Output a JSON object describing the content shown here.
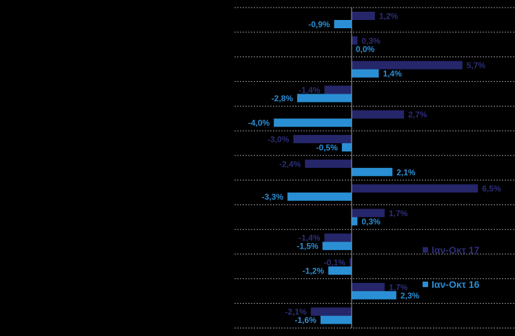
{
  "chart_data": {
    "type": "bar",
    "orientation": "horizontal",
    "title": "",
    "xlabel": "",
    "ylabel": "",
    "categories": [
      "",
      "",
      "",
      "",
      "",
      "",
      "",
      "",
      "",
      "",
      "",
      "",
      ""
    ],
    "xlim": [
      -9.0,
      8.0
    ],
    "grid": "horizontal-dashed",
    "legend_position": "right",
    "series": [
      {
        "name": "Ιαν-Οκτ 17",
        "color": "#26266b",
        "label_color": "#2d2d78",
        "values": [
          1.2,
          0.3,
          5.7,
          -1.4,
          2.7,
          -3.0,
          -2.4,
          6.5,
          1.7,
          -1.4,
          -0.1,
          1.7,
          -2.1
        ],
        "labels": [
          "1,2%",
          "0,3%",
          "5,7%",
          "-1,4%",
          "2,7%",
          "-3,0%",
          "-2,4%",
          "6,5%",
          "1,7%",
          "-1,4%",
          "-0,1%",
          "1,7%",
          "-2,1%"
        ]
      },
      {
        "name": "Ιαν-Οκτ 16",
        "color": "#2a8fd4",
        "label_color": "#2a8fd4",
        "values": [
          -0.9,
          0.0,
          1.4,
          -2.8,
          -4.0,
          -0.5,
          2.1,
          -3.3,
          0.3,
          -1.5,
          -1.2,
          2.3,
          -1.6
        ],
        "labels": [
          "-0,9%",
          "0,0%",
          "1,4%",
          "-2,8%",
          "-4,0%",
          "-0,5%",
          "2,1%",
          "-3,3%",
          "0,3%",
          "-1,5%",
          "-1,2%",
          "2,3%",
          "-1,6%"
        ]
      }
    ]
  }
}
